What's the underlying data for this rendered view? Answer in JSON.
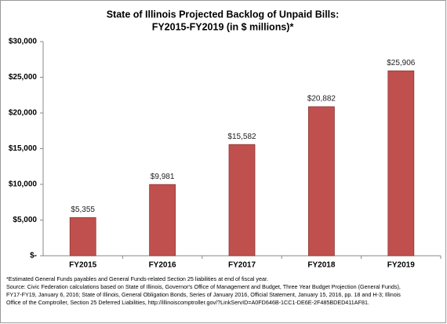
{
  "chart_data": {
    "type": "bar",
    "title": [
      "State of Illinois Projected Backlog of Unpaid Bills:",
      "FY2015-FY2019 (in $ millions)*"
    ],
    "categories": [
      "FY2015",
      "FY2016",
      "FY2017",
      "FY2018",
      "FY2019"
    ],
    "values": [
      5355,
      9981,
      15582,
      20882,
      25906
    ],
    "value_labels": [
      "$5,355",
      "$9,981",
      "$15,582",
      "$20,882",
      "$25,906"
    ],
    "color": "#c0504d",
    "ylim": [
      0,
      30000
    ],
    "yticks": [
      {
        "value": 0,
        "label": "$-"
      },
      {
        "value": 5000,
        "label": "$5,000"
      },
      {
        "value": 10000,
        "label": "$10,000"
      },
      {
        "value": 15000,
        "label": "$15,000"
      },
      {
        "value": 20000,
        "label": "$20,000"
      },
      {
        "value": 25000,
        "label": "$25,000"
      },
      {
        "value": 30000,
        "label": "$30,000"
      }
    ],
    "grid": false,
    "notes": [
      "*Estimated General Funds payables and General Funds-related Section 25 liabilities at end of fiscal year.",
      "Source: Civic Federation calculations based on State of Illinois, Governor's Office of Management and Budget, Three Year Budget Projection (General Funds),",
      "FY17-FY19, January 6, 2016; State of Illinois, General Obligation Bonds, Series of January 2016, Official Statement, January 15, 2016, pp. 18 and H-3; Illinois",
      "Office of the Comptroller, Section 25 Deferred Liabilities, http://illinoiscomptroller.gov/?LinkServID=A0FD646B-1CC1-DE6E-2F485BDED411AF81."
    ]
  }
}
